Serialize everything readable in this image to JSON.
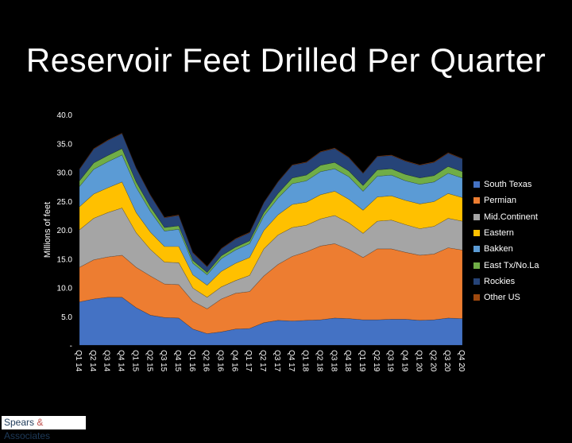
{
  "page": {
    "title": "Reservoir Feet Drilled Per Quarter",
    "logo": "Spears & Associates"
  },
  "chart_data": {
    "type": "area",
    "stacked": true,
    "title": "Reservoir Feet Drilled Per Quarter",
    "ylabel": "Millions of feet",
    "xlabel": "",
    "ylim": [
      0,
      40
    ],
    "yticks": [
      0,
      5,
      10,
      15,
      20,
      25,
      30,
      35,
      40
    ],
    "ytick_labels": [
      "-",
      "5.0",
      "10.0",
      "15.0",
      "20.0",
      "25.0",
      "30.0",
      "35.0",
      "40.0"
    ],
    "legend_position": "right",
    "grid": false,
    "categories": [
      "Q1 14",
      "Q2 14",
      "Q3 14",
      "Q4 14",
      "Q1 15",
      "Q2 15",
      "Q3 15",
      "Q4 15",
      "Q1 16",
      "Q2 16",
      "Q3 16",
      "Q4 16",
      "Q1 17",
      "Q2 17",
      "Q3 17",
      "Q4 17",
      "Q1 18",
      "Q2 18",
      "Q3 18",
      "Q4 18",
      "Q1 19",
      "Q2 19",
      "Q3 19",
      "Q4 19",
      "Q1 20",
      "Q2 20",
      "Q3 20",
      "Q4 20"
    ],
    "series": [
      {
        "name": "South Texas",
        "color": "#4472c4",
        "values": [
          7.5,
          8.0,
          8.3,
          8.3,
          6.5,
          5.2,
          4.8,
          4.7,
          2.8,
          2.0,
          2.3,
          2.8,
          2.9,
          3.9,
          4.3,
          4.2,
          4.3,
          4.4,
          4.7,
          4.6,
          4.4,
          4.4,
          4.5,
          4.5,
          4.3,
          4.4,
          4.7,
          4.6
        ]
      },
      {
        "name": "Permian",
        "color": "#ed7d31",
        "values": [
          6.0,
          6.8,
          7.0,
          7.3,
          7.0,
          6.8,
          5.8,
          5.8,
          4.8,
          4.3,
          5.7,
          6.2,
          6.4,
          8.1,
          9.7,
          11.2,
          11.9,
          12.8,
          12.9,
          12.0,
          10.8,
          12.3,
          12.2,
          11.6,
          11.3,
          11.4,
          12.2,
          11.9
        ]
      },
      {
        "name": "Mid.Continent",
        "color": "#a5a5a5",
        "values": [
          6.5,
          7.2,
          7.7,
          8.2,
          6.0,
          4.6,
          3.8,
          3.8,
          2.3,
          2.0,
          2.1,
          2.2,
          2.8,
          4.7,
          5.1,
          5.0,
          4.6,
          4.7,
          4.9,
          4.6,
          4.2,
          4.8,
          5.0,
          4.8,
          4.6,
          4.8,
          5.1,
          5.0
        ]
      },
      {
        "name": "Eastern",
        "color": "#ffc000",
        "values": [
          4.0,
          4.2,
          4.3,
          4.5,
          3.5,
          3.0,
          2.7,
          2.8,
          2.3,
          2.1,
          2.7,
          3.0,
          3.1,
          3.2,
          3.5,
          4.0,
          4.0,
          4.2,
          4.2,
          4.1,
          4.0,
          4.2,
          4.2,
          4.2,
          4.3,
          4.3,
          4.3,
          4.1
        ]
      },
      {
        "name": "Bakken",
        "color": "#5b9bd5",
        "values": [
          3.5,
          4.3,
          4.5,
          4.7,
          4.4,
          3.6,
          2.7,
          3.0,
          2.0,
          1.8,
          2.2,
          2.3,
          2.4,
          2.5,
          2.9,
          3.6,
          3.7,
          4.0,
          3.9,
          3.9,
          3.3,
          3.6,
          3.6,
          3.4,
          3.4,
          3.4,
          3.5,
          3.4
        ]
      },
      {
        "name": "East Tx/No.La",
        "color": "#70ad47",
        "values": [
          1.0,
          1.1,
          1.1,
          1.1,
          0.9,
          0.8,
          0.6,
          0.6,
          0.5,
          0.4,
          0.5,
          0.5,
          0.5,
          0.6,
          0.8,
          1.0,
          1.0,
          1.1,
          1.1,
          1.0,
          1.0,
          1.1,
          1.1,
          1.1,
          1.1,
          1.1,
          1.2,
          1.1
        ]
      },
      {
        "name": "Rockies",
        "color": "#264478",
        "values": [
          2.0,
          2.4,
          2.6,
          2.6,
          2.4,
          2.0,
          1.7,
          1.8,
          1.3,
          1.0,
          1.2,
          1.4,
          1.4,
          1.7,
          2.0,
          2.2,
          2.2,
          2.3,
          2.4,
          2.3,
          2.1,
          2.3,
          2.3,
          2.3,
          2.2,
          2.3,
          2.3,
          2.2
        ]
      },
      {
        "name": "Other US",
        "color": "#9e480e",
        "values": [
          0.1,
          0.1,
          0.1,
          0.1,
          0.1,
          0.1,
          0.1,
          0.1,
          0.1,
          0.1,
          0.1,
          0.1,
          0.1,
          0.1,
          0.1,
          0.1,
          0.1,
          0.1,
          0.1,
          0.1,
          0.1,
          0.1,
          0.1,
          0.1,
          0.1,
          0.1,
          0.1,
          0.1
        ]
      }
    ]
  }
}
